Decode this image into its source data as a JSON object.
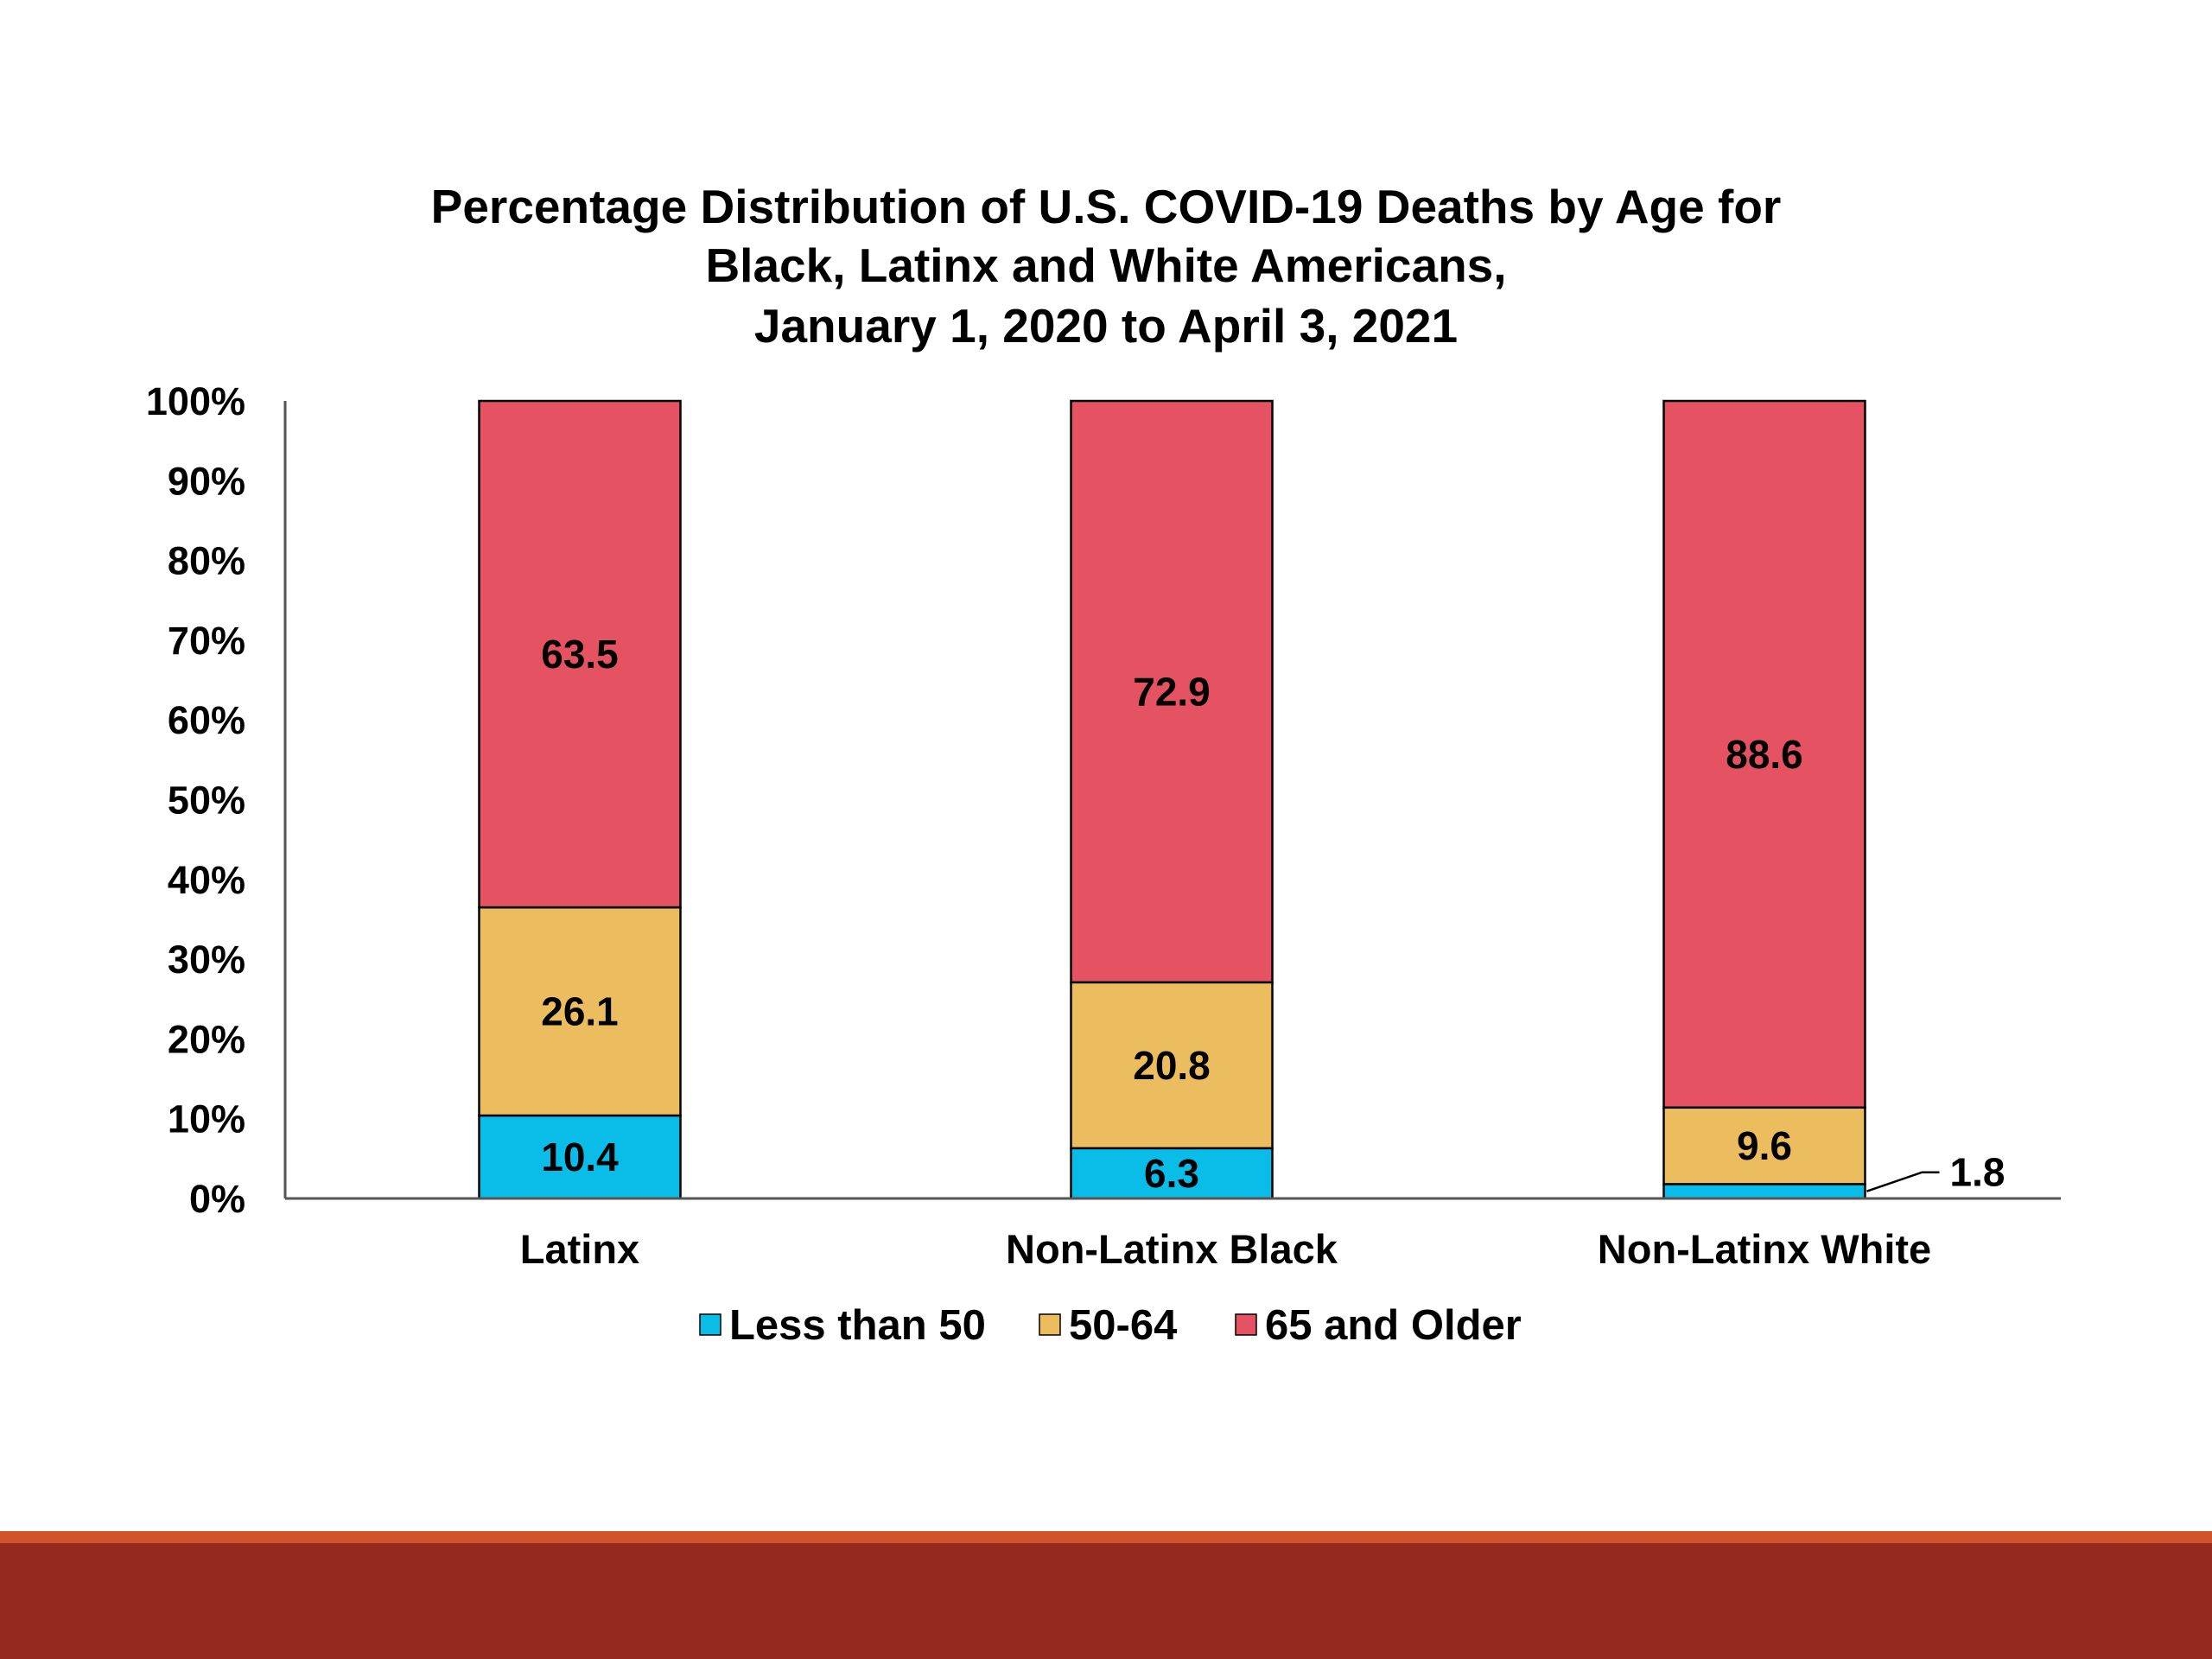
{
  "colors": {
    "less_than_50": "#0abde9",
    "age_50_64": "#ecbd5f",
    "age_65_older": "#e55262",
    "footer_band": "#96291e",
    "footer_line": "#d2522a"
  },
  "chart_data": {
    "type": "bar",
    "stacked": true,
    "title": [
      "Percentage Distribution of U.S. COVID-19 Deaths by Age for",
      "Black, Latinx and White Americans,",
      "January 1, 2020 to April 3, 2021"
    ],
    "xlabel": "",
    "ylabel": "",
    "ylim": [
      0,
      100
    ],
    "yticks": [
      "0%",
      "10%",
      "20%",
      "30%",
      "40%",
      "50%",
      "60%",
      "70%",
      "80%",
      "90%",
      "100%"
    ],
    "grid": false,
    "legend_position": "bottom",
    "categories": [
      "Latinx",
      "Non-Latinx Black",
      "Non-Latinx White"
    ],
    "series": [
      {
        "name": "Less than 50",
        "values": [
          10.4,
          6.3,
          1.8
        ],
        "labels": [
          "10.4",
          "6.3",
          "1.8"
        ]
      },
      {
        "name": "50-64",
        "values": [
          26.1,
          20.8,
          9.6
        ],
        "labels": [
          "26.1",
          "20.8",
          "9.6"
        ]
      },
      {
        "name": "65 and Older",
        "values": [
          63.5,
          72.9,
          88.6
        ],
        "labels": [
          "63.5",
          "72.9",
          "88.6"
        ]
      }
    ]
  }
}
